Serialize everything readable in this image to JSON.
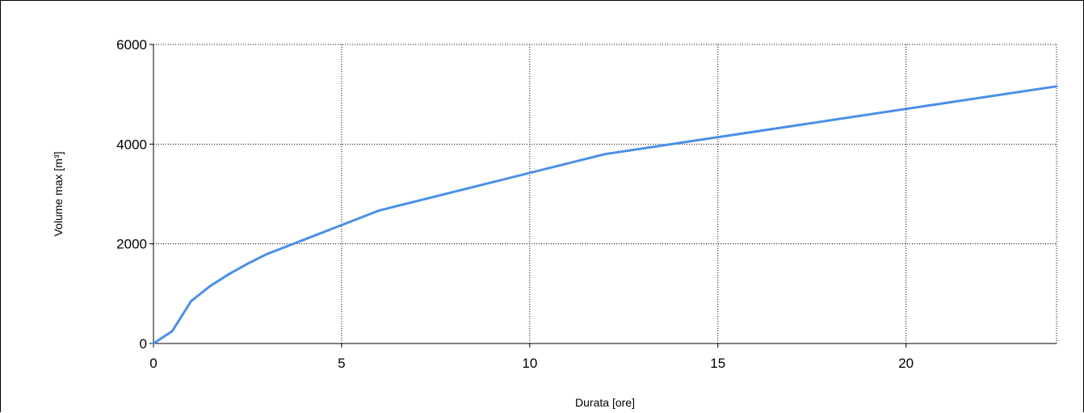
{
  "chart_data": {
    "type": "line",
    "title": "",
    "xlabel": "Durata [ore]",
    "ylabel": "Volume max [m³]",
    "xlim": [
      0,
      24
    ],
    "ylim": [
      0,
      6000
    ],
    "xticks": [
      0,
      5,
      10,
      15,
      20
    ],
    "yticks": [
      0,
      2000,
      4000,
      6000
    ],
    "grid": true,
    "legend": "none",
    "series": [
      {
        "color": "#4a8fe8",
        "x": [
          0,
          0.5,
          1,
          1.5,
          2,
          2.5,
          3,
          6,
          12,
          24
        ],
        "y": [
          0,
          250,
          850,
          1150,
          1390,
          1600,
          1790,
          2670,
          3800,
          5160
        ]
      }
    ]
  }
}
